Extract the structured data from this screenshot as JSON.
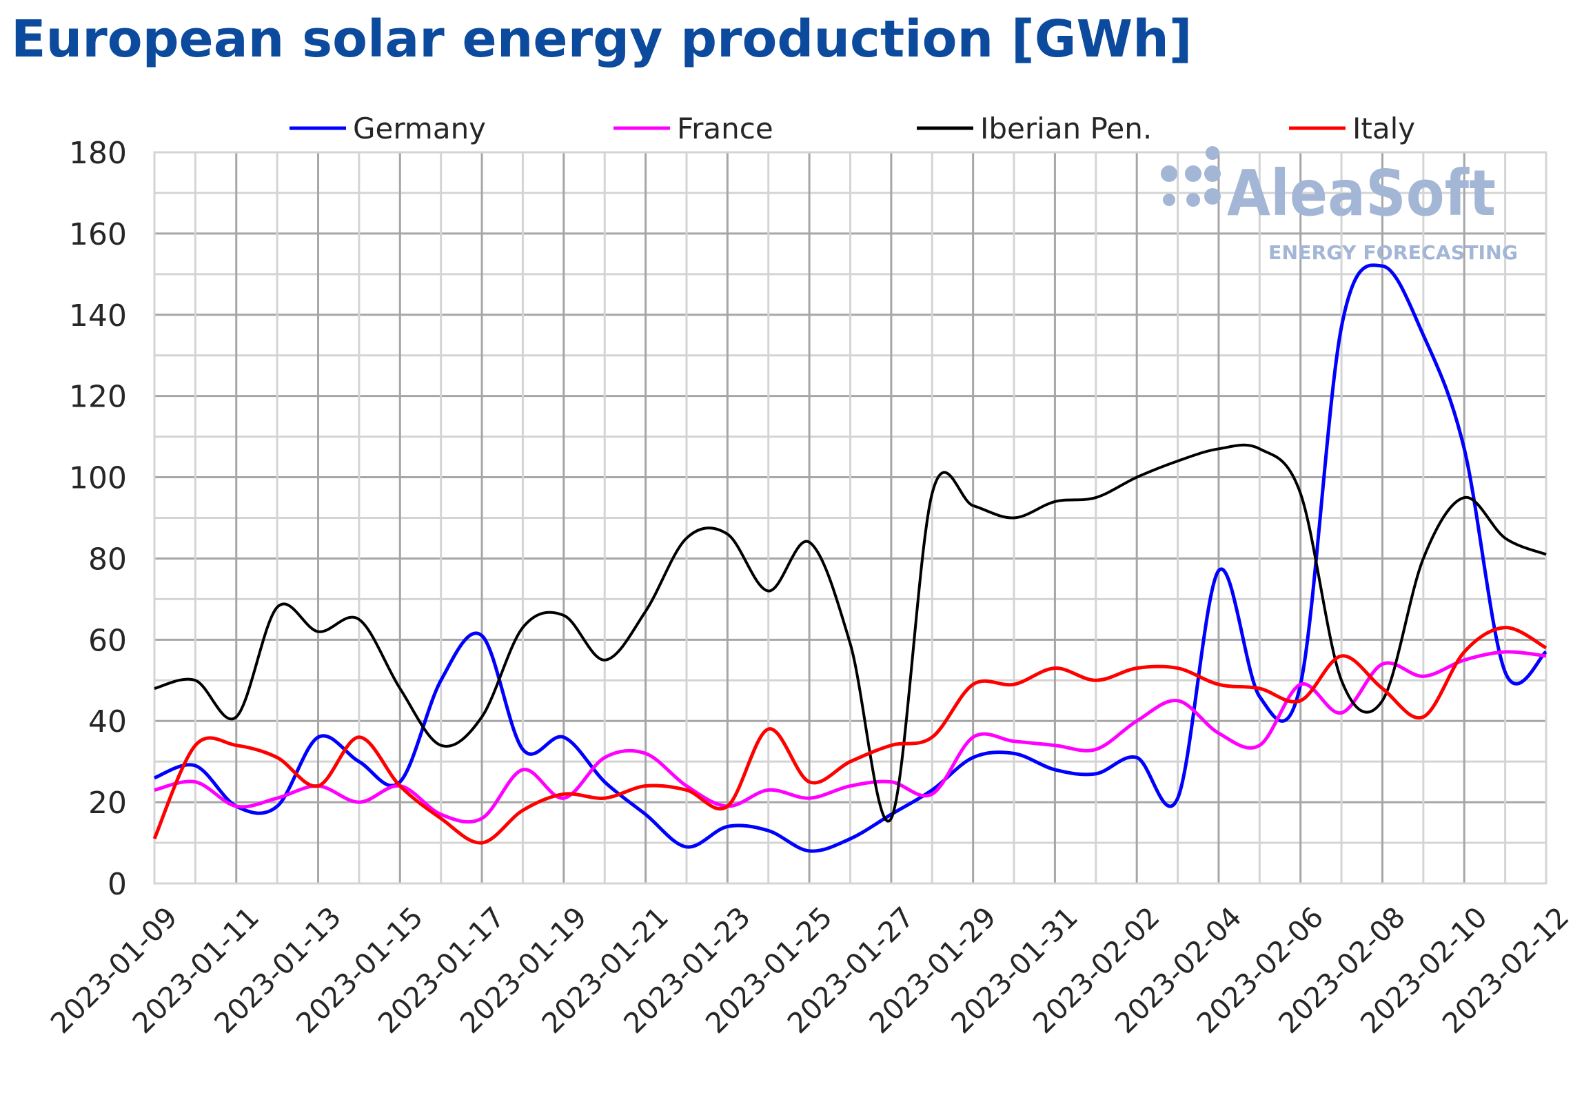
{
  "chart_data": {
    "type": "line",
    "title": "European solar energy production [GWh]",
    "xlabel": "",
    "ylabel": "",
    "ylim": [
      0,
      180
    ],
    "yticks": [
      0,
      20,
      40,
      60,
      80,
      100,
      120,
      140,
      160,
      180
    ],
    "grid": true,
    "legend": "top",
    "x": [
      "2023-01-09",
      "2023-01-10",
      "2023-01-11",
      "2023-01-12",
      "2023-01-13",
      "2023-01-14",
      "2023-01-15",
      "2023-01-16",
      "2023-01-17",
      "2023-01-18",
      "2023-01-19",
      "2023-01-20",
      "2023-01-21",
      "2023-01-22",
      "2023-01-23",
      "2023-01-24",
      "2023-01-25",
      "2023-01-26",
      "2023-01-27",
      "2023-01-28",
      "2023-01-29",
      "2023-01-30",
      "2023-01-31",
      "2023-02-01",
      "2023-02-02",
      "2023-02-03",
      "2023-02-04",
      "2023-02-05",
      "2023-02-06",
      "2023-02-07",
      "2023-02-08",
      "2023-02-09",
      "2023-02-10",
      "2023-02-11",
      "2023-02-12"
    ],
    "xtick_labels": [
      "2023-01-09",
      "2023-01-11",
      "2023-01-13",
      "2023-01-15",
      "2023-01-17",
      "2023-01-19",
      "2023-01-21",
      "2023-01-23",
      "2023-01-25",
      "2023-01-27",
      "2023-01-29",
      "2023-01-31",
      "2023-02-02",
      "2023-02-04",
      "2023-02-06",
      "2023-02-08",
      "2023-02-10",
      "2023-02-12"
    ],
    "series": [
      {
        "name": "Germany",
        "color": "#0000ff",
        "values": [
          26,
          29,
          19,
          19,
          36,
          30,
          25,
          50,
          61,
          33,
          36,
          25,
          17,
          9,
          14,
          13,
          8,
          11,
          17,
          23,
          31,
          32,
          28,
          27,
          31,
          21,
          77,
          46,
          49,
          137,
          152,
          135,
          107,
          52,
          57
        ]
      },
      {
        "name": "France",
        "color": "#ff00ff",
        "values": [
          23,
          25,
          19,
          21,
          24,
          20,
          24,
          17,
          16,
          28,
          21,
          31,
          32,
          24,
          19,
          23,
          21,
          24,
          25,
          22,
          36,
          35,
          34,
          33,
          40,
          45,
          37,
          34,
          49,
          42,
          54,
          51,
          55,
          57,
          56
        ]
      },
      {
        "name": "Iberian Pen.",
        "color": "#000000",
        "values": [
          48,
          50,
          41,
          68,
          62,
          65,
          48,
          34,
          41,
          63,
          66,
          55,
          67,
          85,
          86,
          72,
          84,
          59,
          16,
          96,
          93,
          90,
          94,
          95,
          100,
          104,
          107,
          107,
          96,
          50,
          45,
          80,
          95,
          85,
          81
        ]
      },
      {
        "name": "Italy",
        "color": "#ff0000",
        "values": [
          11,
          34,
          34,
          31,
          24,
          36,
          24,
          16,
          10,
          18,
          22,
          21,
          24,
          23,
          19,
          38,
          25,
          30,
          34,
          36,
          49,
          49,
          53,
          50,
          53,
          53,
          49,
          48,
          45,
          56,
          48,
          41,
          57,
          63,
          58
        ]
      }
    ]
  },
  "watermark": {
    "brand": "AleaSoft",
    "tagline": "ENERGY FORECASTING",
    "color": "#a3b6d6"
  }
}
